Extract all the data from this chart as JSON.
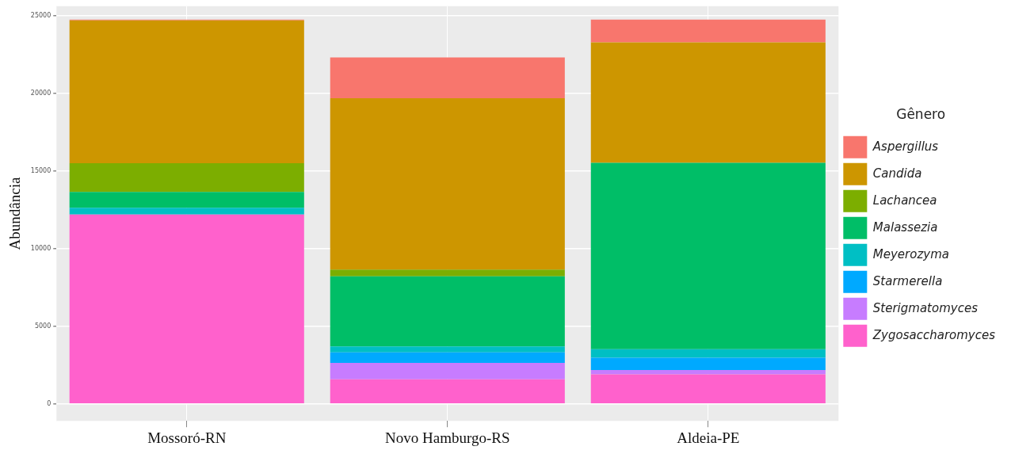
{
  "chart_data": {
    "type": "bar",
    "stacked": true,
    "ylabel": "Abundância",
    "legend_title": "Gênero",
    "legend": "right",
    "grid": true,
    "categories": [
      "Mossoró-RN",
      "Novo Hamburgo-RS",
      "Aldeia-PE"
    ],
    "ylim": [
      -1100,
      25600
    ],
    "yticks": [
      0,
      5000,
      10000,
      15000,
      20000,
      25000
    ],
    "series": [
      {
        "name": "Zygosaccharomyces",
        "color": "#ff61cc",
        "values": [
          12190,
          1570,
          1900
        ]
      },
      {
        "name": "Sterigmatomyces",
        "color": "#c77cff",
        "values": [
          0,
          1060,
          270
        ]
      },
      {
        "name": "Starmerella",
        "color": "#00a9ff",
        "values": [
          0,
          680,
          800
        ]
      },
      {
        "name": "Meyerozyma",
        "color": "#00bfc4",
        "values": [
          430,
          380,
          550
        ]
      },
      {
        "name": "Malassezia",
        "color": "#00be67",
        "values": [
          1020,
          4520,
          12000
        ]
      },
      {
        "name": "Lachancea",
        "color": "#7cae00",
        "values": [
          1850,
          430,
          0
        ]
      },
      {
        "name": "Candida",
        "color": "#cd9600",
        "values": [
          9200,
          11030,
          7750
        ]
      },
      {
        "name": "Aspergillus",
        "color": "#f8766d",
        "values": [
          50,
          2630,
          1470
        ]
      }
    ]
  }
}
